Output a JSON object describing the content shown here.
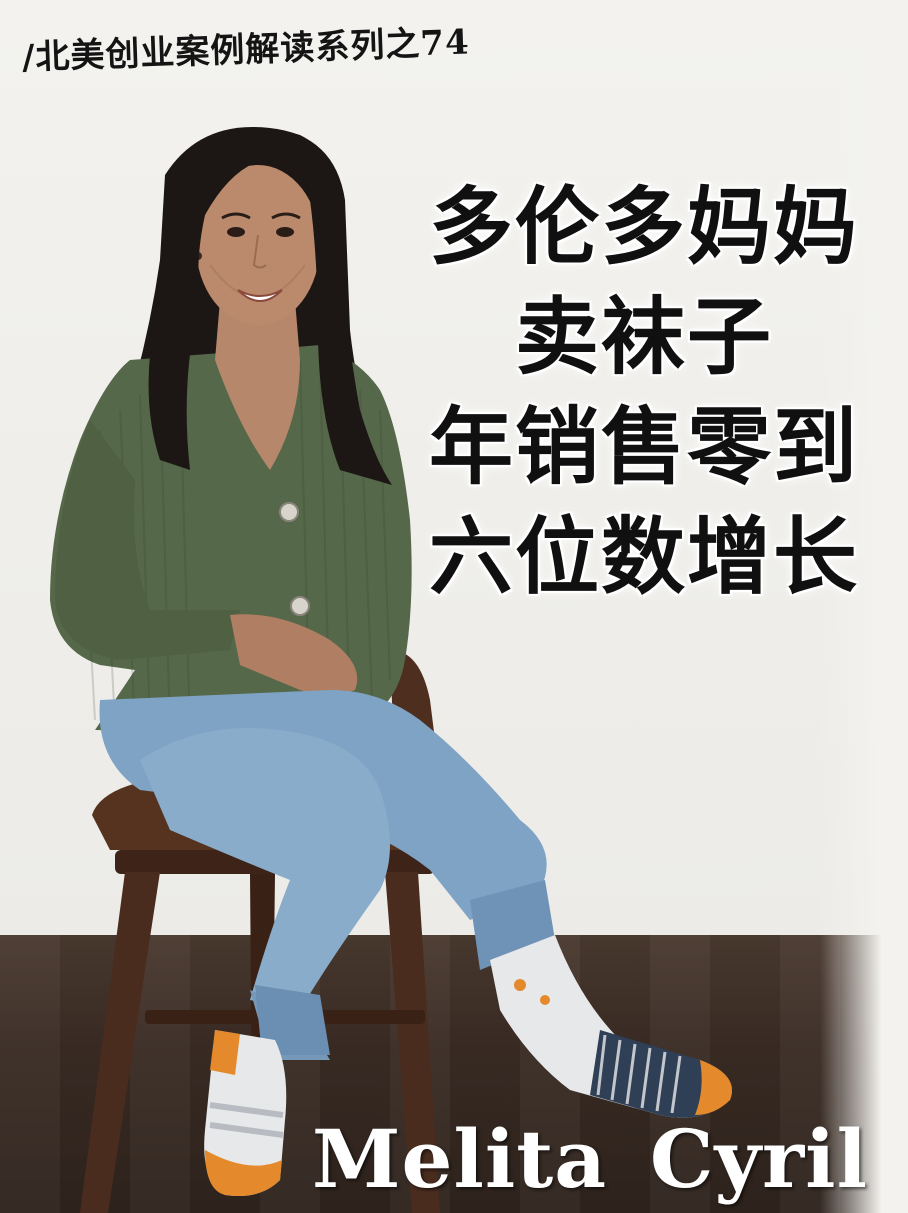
{
  "series_label": "/北美创业案例解读系列之74",
  "headline": {
    "lines": [
      "多伦多妈妈",
      "卖袜子",
      "年销售零到",
      "六位数增长"
    ]
  },
  "person_name": "Melita  Cyril",
  "colors": {
    "wall": "#f0efec",
    "floor": "#3a2c24",
    "cardigan": "#56684a",
    "jeans": "#7fa3c4",
    "stool": "#4a2c1f",
    "hair": "#1c1614",
    "headline_text": "#101010",
    "name_text": "#ffffff"
  }
}
